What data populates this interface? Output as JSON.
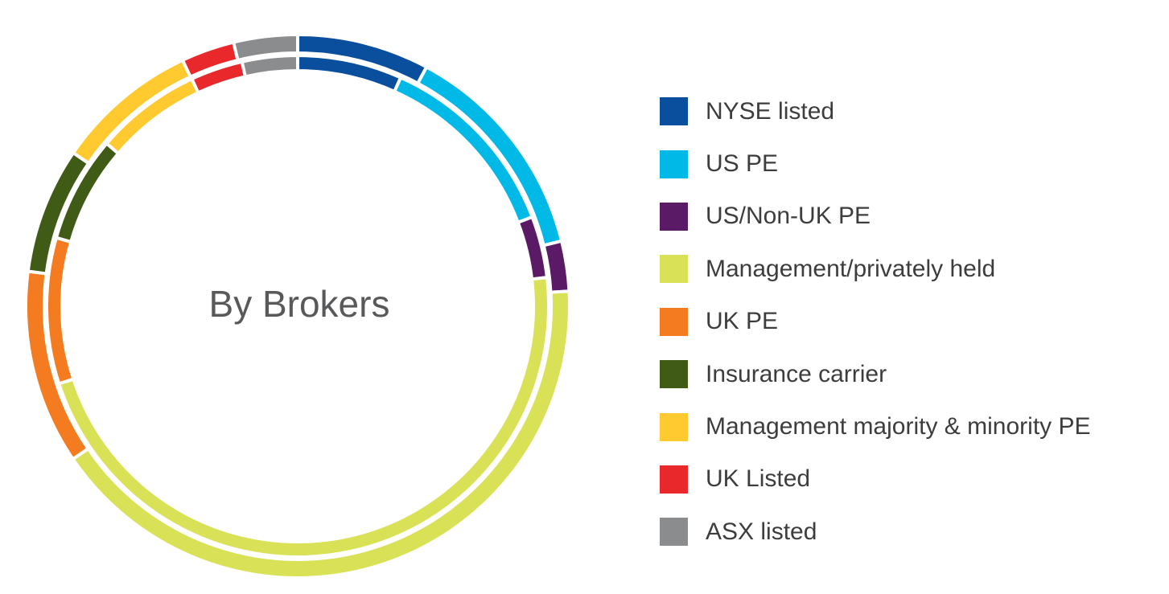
{
  "chart_data": {
    "type": "pie",
    "variant": "nested-donut",
    "title": "By Brokers",
    "categories": [
      "NYSE listed",
      "US PE",
      "US/Non-UK PE",
      "Management/privately held",
      "UK PE",
      "Insurance carrier",
      "Management majority & minority PE",
      "UK Listed",
      "ASX listed"
    ],
    "colors": [
      "#0a4f9e",
      "#00b9e6",
      "#5a1a66",
      "#d9e257",
      "#f47b20",
      "#3f5b16",
      "#ffc930",
      "#e8282b",
      "#8a8c8e"
    ],
    "series": [
      {
        "values": [
          8.7,
          14.7,
          3.3,
          45.8,
          12.8,
          8.3,
          9.4,
          3.5,
          4.2
        ]
      },
      {
        "values": [
          6.8,
          12.6,
          4.0,
          47.3,
          9.5,
          6.9,
          6.9,
          3.4,
          3.6
        ]
      }
    ],
    "legend_position": "right"
  }
}
